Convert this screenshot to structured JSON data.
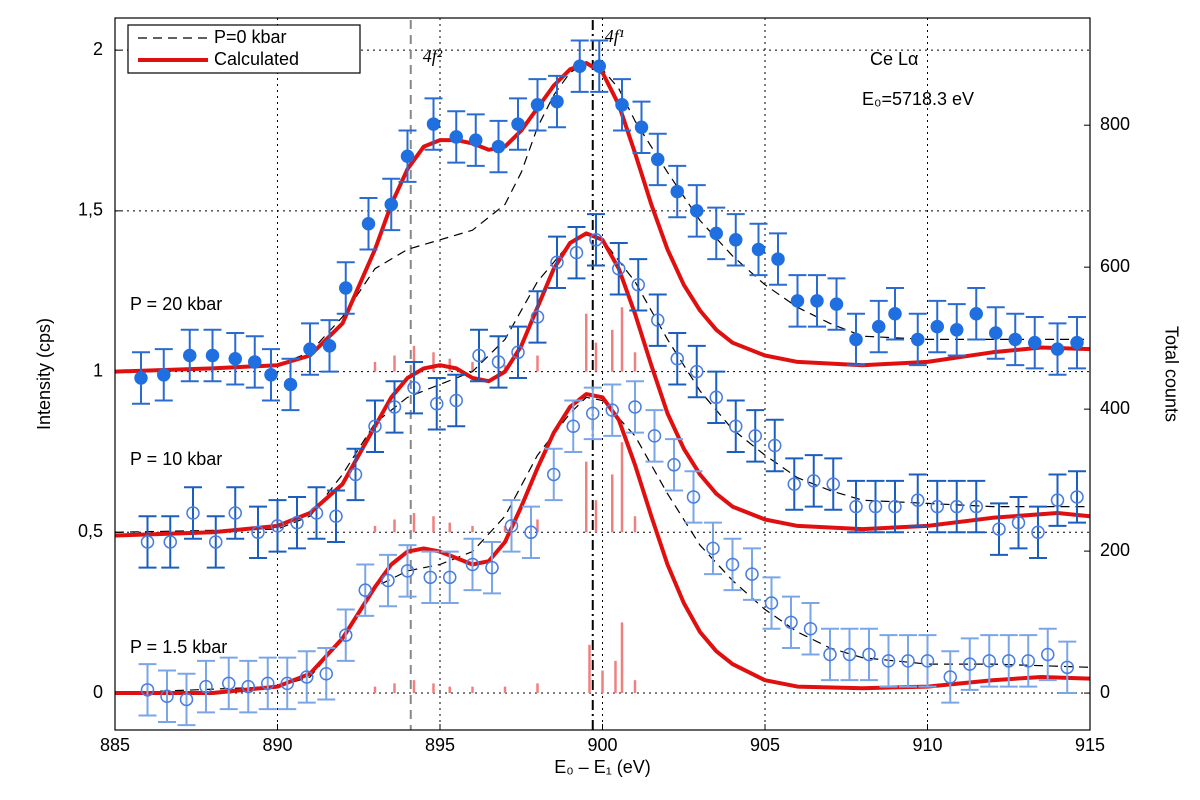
{
  "chart_data": {
    "type": "errorbar",
    "xlabel": "E₀ – E₁ (eV)",
    "ylabel": "Intensity (cps)",
    "y2label": "Total counts",
    "xlim": [
      885,
      915
    ],
    "xticks": [
      885,
      890,
      895,
      900,
      905,
      910,
      915
    ],
    "ylim": [
      -0.115,
      2.1
    ],
    "yticks": [
      0,
      {
        "value": 0.5,
        "label": "0,5"
      },
      1,
      {
        "value": 1.5,
        "label": "1,5"
      },
      2
    ],
    "y2lim": [
      -52,
      951
    ],
    "y2ticks": [
      0,
      200,
      400,
      600,
      800
    ],
    "grid": true,
    "legend": "upper left",
    "annotations": [
      "Ce Lα",
      "E₀=5718.3 eV"
    ],
    "vlines": [
      {
        "x": 894.1,
        "label": "4f²",
        "color": "#888888",
        "style": "dashed"
      },
      {
        "x": 899.7,
        "label": "4f¹",
        "color": "#000000",
        "style": "dashdot"
      }
    ],
    "series": [
      {
        "name": "P = 20 kbar",
        "color": "#1f6fe0",
        "error_color": "#2a6bd1",
        "filled": true,
        "error": 0.08,
        "x": [
          885.8,
          886.5,
          887.3,
          888.0,
          888.7,
          889.3,
          889.8,
          890.4,
          891.0,
          891.6,
          892.1,
          892.8,
          893.5,
          894.0,
          894.8,
          895.5,
          896.1,
          896.8,
          897.4,
          898.0,
          898.6,
          899.3,
          899.9,
          900.6,
          901.2,
          901.7,
          902.3,
          902.9,
          903.5,
          904.1,
          904.8,
          905.4,
          906.0,
          906.6,
          907.2,
          907.8,
          908.5,
          909.0,
          909.7,
          910.3,
          910.9,
          911.5,
          912.1,
          912.7,
          913.3,
          914.0,
          914.6
        ],
        "values": [
          0.98,
          0.99,
          1.05,
          1.05,
          1.04,
          1.03,
          0.99,
          0.96,
          1.07,
          1.08,
          1.26,
          1.46,
          1.52,
          1.67,
          1.77,
          1.73,
          1.72,
          1.7,
          1.77,
          1.83,
          1.84,
          1.95,
          1.95,
          1.83,
          1.76,
          1.66,
          1.56,
          1.5,
          1.43,
          1.41,
          1.38,
          1.35,
          1.22,
          1.22,
          1.21,
          1.1,
          1.14,
          1.18,
          1.1,
          1.14,
          1.13,
          1.18,
          1.12,
          1.1,
          1.09,
          1.07,
          1.09
        ]
      },
      {
        "name": "P = 10 kbar",
        "color": "#4a7de0",
        "error_color": "#1a5fbf",
        "filled": false,
        "error": 0.08,
        "x": [
          886.0,
          886.7,
          887.4,
          888.1,
          888.7,
          889.4,
          890.0,
          890.6,
          891.2,
          891.8,
          892.4,
          893.0,
          893.6,
          894.2,
          894.9,
          895.5,
          896.2,
          896.8,
          897.4,
          898.0,
          898.6,
          899.2,
          899.8,
          900.5,
          901.1,
          901.7,
          902.3,
          902.9,
          903.5,
          904.1,
          904.7,
          905.3,
          905.9,
          906.5,
          907.1,
          907.8,
          908.4,
          909.0,
          909.7,
          910.3,
          910.9,
          911.5,
          912.2,
          912.8,
          913.4,
          914.0,
          914.6
        ],
        "values": [
          0.47,
          0.47,
          0.56,
          0.47,
          0.56,
          0.5,
          0.52,
          0.53,
          0.56,
          0.55,
          0.68,
          0.83,
          0.89,
          0.95,
          0.9,
          0.91,
          1.05,
          1.03,
          1.06,
          1.17,
          1.34,
          1.37,
          1.41,
          1.32,
          1.27,
          1.16,
          1.04,
          1.0,
          0.92,
          0.83,
          0.8,
          0.77,
          0.65,
          0.66,
          0.65,
          0.58,
          0.58,
          0.58,
          0.6,
          0.58,
          0.58,
          0.58,
          0.51,
          0.53,
          0.5,
          0.6,
          0.61
        ]
      },
      {
        "name": "P = 1.5 kbar",
        "color": "#4a7de0",
        "error_color": "#7aa6e8",
        "filled": false,
        "error": 0.08,
        "x": [
          886.0,
          886.6,
          887.2,
          887.8,
          888.5,
          889.1,
          889.7,
          890.3,
          890.9,
          891.5,
          892.1,
          892.7,
          893.4,
          894.0,
          894.7,
          895.3,
          896.0,
          896.6,
          897.2,
          897.8,
          898.5,
          899.1,
          899.7,
          900.3,
          901.0,
          901.6,
          902.2,
          902.8,
          903.4,
          904.0,
          904.6,
          905.2,
          905.8,
          906.4,
          907.0,
          907.6,
          908.2,
          908.8,
          909.4,
          910.0,
          910.7,
          911.3,
          911.9,
          912.5,
          913.1,
          913.7,
          914.3
        ],
        "values": [
          0.01,
          -0.01,
          -0.02,
          0.02,
          0.03,
          0.02,
          0.03,
          0.03,
          0.05,
          0.06,
          0.18,
          0.32,
          0.35,
          0.38,
          0.36,
          0.36,
          0.4,
          0.39,
          0.52,
          0.5,
          0.68,
          0.83,
          0.87,
          0.88,
          0.89,
          0.8,
          0.71,
          0.61,
          0.45,
          0.4,
          0.37,
          0.28,
          0.22,
          0.2,
          0.12,
          0.12,
          0.12,
          0.1,
          0.1,
          0.1,
          0.05,
          0.09,
          0.1,
          0.1,
          0.1,
          0.12,
          0.08
        ]
      }
    ],
    "lines": [
      {
        "name": "P=0 kbar",
        "color": "#000000",
        "width": 1.2,
        "style": "dashed",
        "x": [
          885,
          890,
          891,
          892,
          893,
          894,
          895,
          896,
          897,
          897.5,
          898,
          898.5,
          899,
          899.5,
          900,
          900.5,
          901,
          902,
          903,
          904,
          905,
          906,
          907,
          908,
          910,
          912,
          915,
          null,
          885,
          890,
          891,
          892,
          893,
          894,
          895,
          896,
          897,
          898,
          899,
          899.5,
          900,
          901,
          902,
          903,
          904,
          905,
          906,
          907,
          908,
          910,
          912,
          915,
          null,
          885,
          890,
          891,
          892,
          893,
          894,
          895,
          896,
          897,
          898,
          899,
          899.5,
          900,
          901,
          902,
          903,
          904,
          905,
          906,
          907,
          908,
          910,
          912,
          915
        ],
        "values": [
          1.0,
          1.02,
          1.06,
          1.17,
          1.32,
          1.38,
          1.41,
          1.44,
          1.52,
          1.62,
          1.76,
          1.86,
          1.93,
          1.96,
          1.94,
          1.88,
          1.78,
          1.62,
          1.47,
          1.36,
          1.27,
          1.2,
          1.15,
          1.11,
          1.1,
          1.1,
          1.1,
          null,
          0.5,
          0.51,
          0.55,
          0.68,
          0.84,
          0.92,
          0.96,
          1.0,
          1.1,
          1.28,
          1.4,
          1.43,
          1.41,
          1.28,
          1.1,
          0.94,
          0.82,
          0.74,
          0.67,
          0.63,
          0.6,
          0.59,
          0.58,
          0.58,
          null,
          0.0,
          0.02,
          0.05,
          0.17,
          0.33,
          0.38,
          0.4,
          0.44,
          0.55,
          0.74,
          0.87,
          0.92,
          0.91,
          0.8,
          0.62,
          0.46,
          0.35,
          0.26,
          0.19,
          0.14,
          0.11,
          0.09,
          0.09,
          0.08
        ]
      },
      {
        "name": "Calculated",
        "color": "#e01010",
        "width": 4,
        "style": "solid",
        "x": [
          885,
          888,
          890,
          891,
          892,
          893,
          893.5,
          894,
          894.5,
          895,
          895.5,
          896,
          896.5,
          897,
          897.5,
          898,
          898.5,
          899,
          899.5,
          900,
          900.5,
          901,
          901.5,
          902,
          902.5,
          903,
          903.5,
          904,
          905,
          906,
          908,
          910,
          912,
          913.5,
          915,
          null,
          885,
          888,
          890,
          891,
          892,
          893,
          893.5,
          894,
          894.5,
          895,
          895.5,
          896,
          896.5,
          897,
          897.5,
          898,
          898.5,
          899,
          899.5,
          900,
          900.5,
          901,
          901.5,
          902,
          902.5,
          903,
          903.5,
          904,
          905,
          906,
          908,
          910,
          912,
          914,
          915,
          null,
          885,
          888,
          890,
          891,
          892,
          893,
          893.5,
          894,
          894.5,
          895,
          895.5,
          896,
          896.5,
          897,
          897.5,
          898,
          898.5,
          899,
          899.5,
          900,
          900.5,
          901,
          901.5,
          902,
          902.5,
          903,
          903.5,
          904,
          905,
          906,
          908,
          910,
          912,
          913.5,
          915
        ],
        "values": [
          1.0,
          1.01,
          1.02,
          1.05,
          1.15,
          1.38,
          1.52,
          1.63,
          1.7,
          1.72,
          1.72,
          1.71,
          1.69,
          1.7,
          1.75,
          1.82,
          1.89,
          1.94,
          1.96,
          1.93,
          1.83,
          1.68,
          1.52,
          1.38,
          1.27,
          1.19,
          1.13,
          1.09,
          1.05,
          1.03,
          1.02,
          1.03,
          1.06,
          1.075,
          1.07,
          null,
          0.49,
          0.5,
          0.52,
          0.56,
          0.65,
          0.83,
          0.92,
          0.98,
          1.01,
          1.02,
          1.01,
          0.98,
          0.97,
          1.0,
          1.08,
          1.2,
          1.32,
          1.4,
          1.43,
          1.41,
          1.32,
          1.18,
          1.02,
          0.87,
          0.76,
          0.68,
          0.62,
          0.58,
          0.54,
          0.52,
          0.51,
          0.52,
          0.545,
          0.56,
          0.55,
          null,
          0.0,
          0.0,
          0.02,
          0.06,
          0.17,
          0.33,
          0.4,
          0.44,
          0.45,
          0.44,
          0.42,
          0.4,
          0.41,
          0.47,
          0.58,
          0.7,
          0.81,
          0.89,
          0.93,
          0.92,
          0.85,
          0.71,
          0.55,
          0.4,
          0.28,
          0.19,
          0.13,
          0.09,
          0.04,
          0.02,
          0.015,
          0.02,
          0.04,
          0.05,
          0.045
        ]
      }
    ],
    "sticks": [
      {
        "offset": 1,
        "color": "#f08080",
        "x": [
          893.0,
          893.6,
          894.2,
          894.8,
          895.3,
          896.0,
          897.0,
          898.0,
          899.5,
          899.8,
          900.3,
          900.6,
          901.0
        ],
        "values": [
          0.03,
          0.05,
          0.08,
          0.06,
          0.04,
          0.03,
          0.02,
          0.05,
          0.18,
          0.09,
          0.13,
          0.2,
          0.06
        ]
      },
      {
        "offset": 0.5,
        "color": "#f08080",
        "x": [
          893.0,
          893.6,
          894.2,
          894.8,
          895.3,
          896.0,
          897.0,
          898.0,
          899.5,
          899.8,
          900.3,
          900.6,
          901.0
        ],
        "values": [
          0.02,
          0.04,
          0.06,
          0.05,
          0.03,
          0.02,
          0.02,
          0.04,
          0.22,
          0.1,
          0.18,
          0.28,
          0.05
        ]
      },
      {
        "offset": 0,
        "color": "#f08080",
        "x": [
          893.0,
          893.6,
          894.2,
          894.8,
          895.3,
          896.0,
          897.0,
          898.0,
          899.6,
          900.0,
          900.4,
          900.6,
          901.0
        ],
        "values": [
          0.02,
          0.03,
          0.04,
          0.03,
          0.02,
          0.02,
          0.02,
          0.03,
          0.15,
          0.07,
          0.1,
          0.22,
          0.04
        ]
      }
    ]
  }
}
